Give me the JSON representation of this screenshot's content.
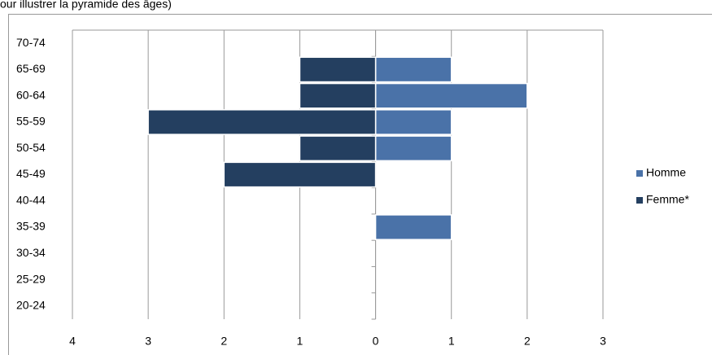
{
  "chart_data": {
    "type": "bar",
    "orientation": "horizontal",
    "title": "our illustrer la pyramide des âges)",
    "categories": [
      "20-24",
      "25-29",
      "30-34",
      "35-39",
      "40-44",
      "45-49",
      "50-54",
      "55-59",
      "60-64",
      "65-69",
      "70-74"
    ],
    "series": [
      {
        "name": "Homme",
        "color": "#4a72a8",
        "values": [
          0,
          0,
          0,
          1,
          0,
          0,
          1,
          1,
          2,
          1,
          0
        ]
      },
      {
        "name": "Femme*",
        "color": "#243f60",
        "values": [
          0,
          0,
          0,
          0,
          0,
          -2,
          -1,
          -3,
          -1,
          -1,
          0
        ]
      }
    ],
    "xlim": [
      -4,
      3
    ],
    "xticks": [
      {
        "value": -4,
        "label": "4"
      },
      {
        "value": -3,
        "label": "3"
      },
      {
        "value": -2,
        "label": "2"
      },
      {
        "value": -1,
        "label": "1"
      },
      0,
      1,
      2,
      3
    ],
    "grid": true,
    "legend": "right"
  }
}
